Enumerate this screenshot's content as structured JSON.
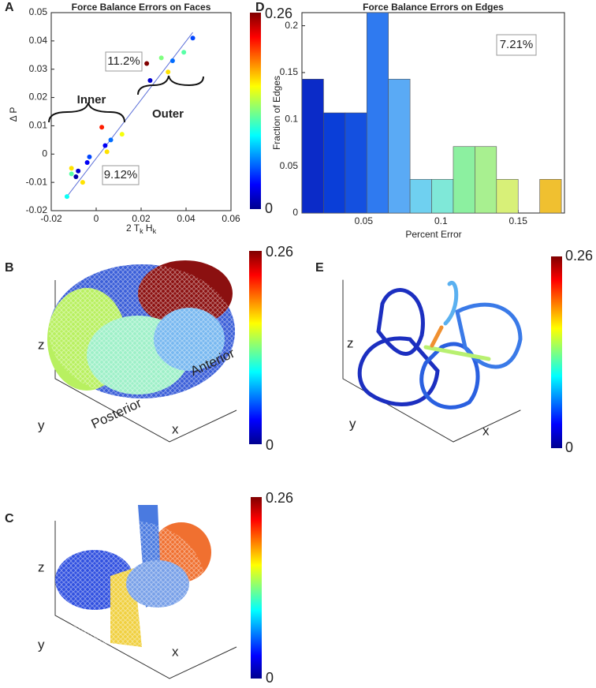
{
  "chart_data": [
    {
      "type": "scatter",
      "panel": "A",
      "title": "Force Balance Errors on Faces",
      "xlabel": [
        "2 T",
        "k",
        " H",
        "k"
      ],
      "ylabel": "Δ P",
      "xlim": [
        -0.02,
        0.06
      ],
      "xticks": [
        -0.02,
        0,
        0.02,
        0.04,
        0.06
      ],
      "ylim": [
        -0.02,
        0.05
      ],
      "yticks": [
        -0.02,
        -0.01,
        0,
        0.01,
        0.02,
        0.03,
        0.04,
        0.05
      ],
      "series": [
        {
          "x": [
            0.043,
            0.039,
            0.034,
            0.029,
            0.032,
            0.0225,
            0.024,
            0.0115,
            0.0025,
            0.0065,
            0.004,
            0.0048,
            -0.003,
            -0.004,
            -0.008,
            -0.009,
            -0.011,
            -0.011,
            -0.006,
            -0.013
          ],
          "values": [
            0.041,
            0.036,
            0.033,
            0.034,
            0.029,
            0.032,
            0.026,
            0.007,
            0.0095,
            0.005,
            0.003,
            0.0008,
            -0.001,
            -0.003,
            -0.006,
            -0.008,
            -0.005,
            -0.007,
            -0.01,
            -0.015
          ],
          "color_values": [
            0.05,
            0.12,
            0.06,
            0.13,
            0.17,
            0.26,
            0.02,
            0.16,
            0.22,
            0.06,
            0.03,
            0.17,
            0.05,
            0.03,
            0.02,
            0.01,
            0.17,
            0.12,
            0.17,
            0.1
          ]
        }
      ],
      "fit_line": {
        "x": [
          -0.013,
          0.043
        ],
        "values": [
          -0.015,
          0.043
        ],
        "color": "#5b6fd8"
      },
      "annotations": [
        "11.2%",
        "9.12%",
        "Inner",
        "Outer"
      ],
      "clim": [
        0,
        0.26
      ],
      "cticks": [
        0,
        0.26
      ]
    },
    {
      "type": "histogram",
      "panel": "D",
      "title": "Force Balance Errors on Edges",
      "xlabel": "Percent Error",
      "ylabel": "Fraction of Edges",
      "bins": [
        0.01,
        0.024,
        0.038,
        0.052,
        0.066,
        0.08,
        0.094,
        0.108,
        0.122,
        0.136,
        0.15,
        0.164,
        0.178
      ],
      "values": [
        0.143,
        0.107,
        0.107,
        0.214,
        0.143,
        0.036,
        0.036,
        0.071,
        0.071,
        0.036,
        0,
        0.036
      ],
      "colors": [
        "#0b2bc8",
        "#0a3ed8",
        "#1450e0",
        "#2f7af0",
        "#5aaaf5",
        "#6fd0f0",
        "#7fe8d8",
        "#8cf0a0",
        "#a8f090",
        "#d8f078",
        "#ffffff",
        "#f0c030"
      ],
      "xlim": [
        0.01,
        0.18
      ],
      "xticks": [
        0.05,
        0.1,
        0.15
      ],
      "ylim": [
        0,
        0.214
      ],
      "yticks": [
        0,
        0.05,
        0.1,
        0.15,
        0.2
      ],
      "annotations": [
        "7.21%"
      ]
    }
  ],
  "panels_3d": [
    {
      "panel": "B",
      "axis_labels": [
        "z",
        "y",
        "x"
      ],
      "annotations": [
        "Posterior",
        "Anterior"
      ],
      "cticks": [
        0,
        0.26
      ]
    },
    {
      "panel": "C",
      "axis_labels": [
        "z",
        "y",
        "x"
      ],
      "cticks": [
        0,
        0.26
      ]
    },
    {
      "panel": "E",
      "axis_labels": [
        "z",
        "y",
        "x"
      ],
      "cticks": [
        0,
        0.26
      ]
    }
  ]
}
